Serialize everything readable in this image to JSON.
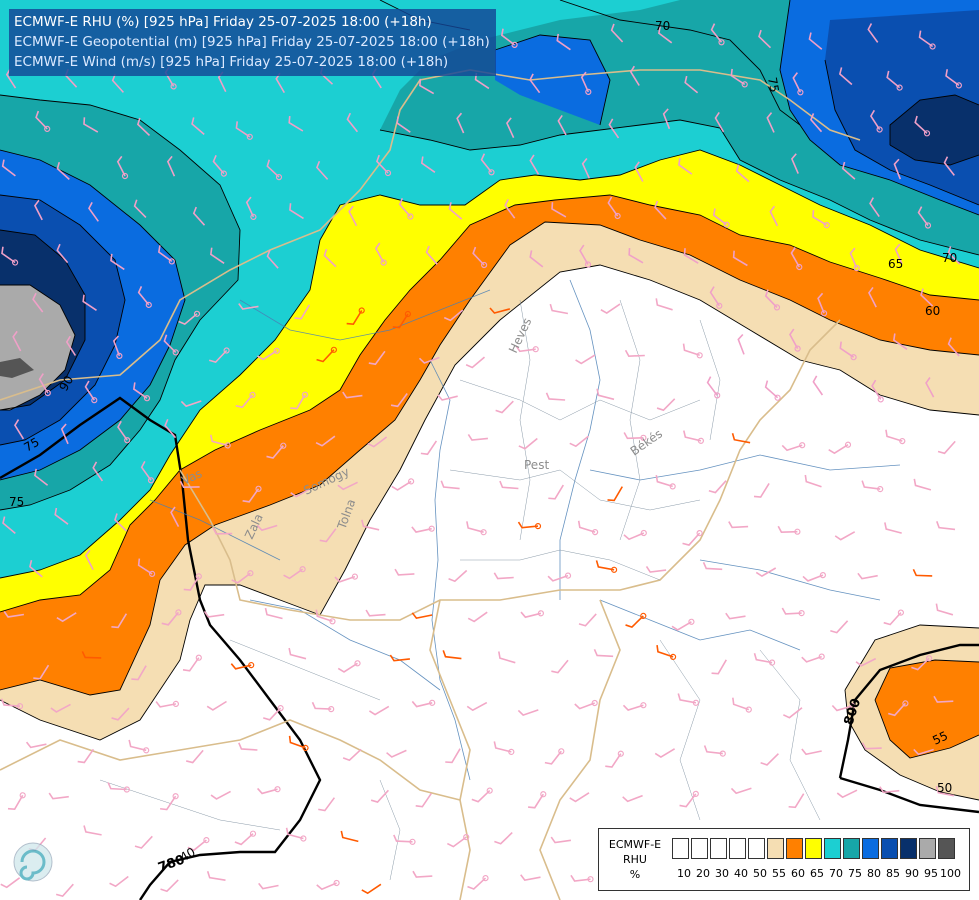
{
  "header": {
    "line1": "ECMWF-E RHU (%) [925 hPa] Friday 25-07-2025 18:00 (+18h)",
    "line2": "ECMWF-E Geopotential (m) [925 hPa] Friday 25-07-2025 18:00 (+18h)",
    "line3": "ECMWF-E Wind (m/s) [925 hPa] Friday 25-07-2025 18:00 (+18h)"
  },
  "legend": {
    "title_line1": "ECMWF-E",
    "title_line2": "RHU",
    "title_line3": "%",
    "swatches": [
      "#ffffff",
      "#ffffff",
      "#ffffff",
      "#ffffff",
      "#ffffff",
      "#f5deb3",
      "#ff8000",
      "#ffff00",
      "#1ccfd2",
      "#17a6a8",
      "#0a6ce0",
      "#0a4fb0",
      "#08306b",
      "#aaaaaa",
      "#555555"
    ],
    "ticks": [
      "10",
      "20",
      "30",
      "40",
      "50",
      "55",
      "60",
      "65",
      "70",
      "75",
      "80",
      "85",
      "90",
      "95",
      "100"
    ]
  },
  "contour_labels": {
    "rhu": [
      "70",
      "75",
      "70",
      "65",
      "60",
      "90",
      "75",
      "75",
      "55",
      "50"
    ],
    "geopotential": [
      "800",
      "780",
      "40"
    ]
  },
  "place_labels": [
    "Pest",
    "Békés",
    "Heves",
    "Tolna",
    "Zala",
    "Somogy",
    "Vas"
  ],
  "colors": {
    "rh50": "#ffffff",
    "rh55": "#f5deb3",
    "rh60": "#ff8000",
    "rh65": "#ffff00",
    "rh70": "#1ccfd2",
    "rh75": "#17a6a8",
    "rh80": "#0a6ce0",
    "rh85": "#0a4fb0",
    "rh90": "#08306b",
    "rh95": "#aaaaaa",
    "rh100": "#555555"
  }
}
